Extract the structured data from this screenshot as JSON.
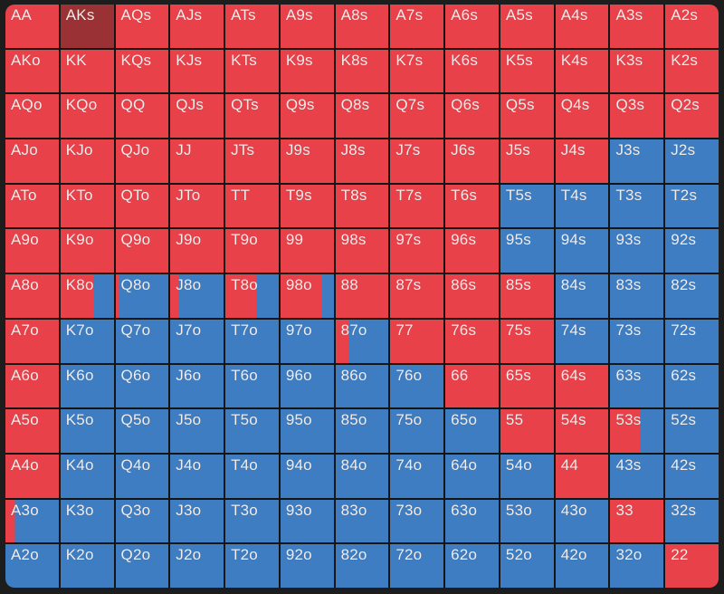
{
  "colors": {
    "raise": "#e8414a",
    "fold": "#3e7dc1",
    "selected": "#9a3134",
    "grid_line": "#151515",
    "page_background": "#1d1d1d",
    "label_text": "#f2eceb"
  },
  "range_grid": {
    "description": "13x13 poker preflop hand matrix; red fraction = raise frequency, remainder fold/call (blue)",
    "rows": [
      [
        [
          "AA",
          1
        ],
        [
          "AKs",
          1,
          "selected"
        ],
        [
          "AQs",
          1
        ],
        [
          "AJs",
          1
        ],
        [
          "ATs",
          1
        ],
        [
          "A9s",
          1
        ],
        [
          "A8s",
          1
        ],
        [
          "A7s",
          1
        ],
        [
          "A6s",
          1
        ],
        [
          "A5s",
          1
        ],
        [
          "A4s",
          1
        ],
        [
          "A3s",
          1
        ],
        [
          "A2s",
          1
        ]
      ],
      [
        [
          "AKo",
          1
        ],
        [
          "KK",
          1
        ],
        [
          "KQs",
          1
        ],
        [
          "KJs",
          1
        ],
        [
          "KTs",
          1
        ],
        [
          "K9s",
          1
        ],
        [
          "K8s",
          1
        ],
        [
          "K7s",
          1
        ],
        [
          "K6s",
          1
        ],
        [
          "K5s",
          1
        ],
        [
          "K4s",
          1
        ],
        [
          "K3s",
          1
        ],
        [
          "K2s",
          1
        ]
      ],
      [
        [
          "AQo",
          1
        ],
        [
          "KQo",
          1
        ],
        [
          "QQ",
          1
        ],
        [
          "QJs",
          1
        ],
        [
          "QTs",
          1
        ],
        [
          "Q9s",
          1
        ],
        [
          "Q8s",
          1
        ],
        [
          "Q7s",
          1
        ],
        [
          "Q6s",
          1
        ],
        [
          "Q5s",
          1
        ],
        [
          "Q4s",
          1
        ],
        [
          "Q3s",
          1
        ],
        [
          "Q2s",
          1
        ]
      ],
      [
        [
          "AJo",
          1
        ],
        [
          "KJo",
          1
        ],
        [
          "QJo",
          1
        ],
        [
          "JJ",
          1
        ],
        [
          "JTs",
          1
        ],
        [
          "J9s",
          1
        ],
        [
          "J8s",
          1
        ],
        [
          "J7s",
          1
        ],
        [
          "J6s",
          1
        ],
        [
          "J5s",
          1
        ],
        [
          "J4s",
          1
        ],
        [
          "J3s",
          0
        ],
        [
          "J2s",
          0
        ]
      ],
      [
        [
          "ATo",
          1
        ],
        [
          "KTo",
          1
        ],
        [
          "QTo",
          1
        ],
        [
          "JTo",
          1
        ],
        [
          "TT",
          1
        ],
        [
          "T9s",
          1
        ],
        [
          "T8s",
          1
        ],
        [
          "T7s",
          1
        ],
        [
          "T6s",
          1
        ],
        [
          "T5s",
          0
        ],
        [
          "T4s",
          0
        ],
        [
          "T3s",
          0
        ],
        [
          "T2s",
          0
        ]
      ],
      [
        [
          "A9o",
          1
        ],
        [
          "K9o",
          1
        ],
        [
          "Q9o",
          1
        ],
        [
          "J9o",
          1
        ],
        [
          "T9o",
          1
        ],
        [
          "99",
          1
        ],
        [
          "98s",
          1
        ],
        [
          "97s",
          1
        ],
        [
          "96s",
          1
        ],
        [
          "95s",
          0
        ],
        [
          "94s",
          0
        ],
        [
          "93s",
          0
        ],
        [
          "92s",
          0
        ]
      ],
      [
        [
          "A8o",
          1
        ],
        [
          "K8o",
          0.62
        ],
        [
          "Q8o",
          0.05
        ],
        [
          "J8o",
          0.15
        ],
        [
          "T8o",
          0.58
        ],
        [
          "98o",
          0.77
        ],
        [
          "88",
          1
        ],
        [
          "87s",
          1
        ],
        [
          "86s",
          1
        ],
        [
          "85s",
          1
        ],
        [
          "84s",
          0
        ],
        [
          "83s",
          0
        ],
        [
          "82s",
          0
        ]
      ],
      [
        [
          "A7o",
          1
        ],
        [
          "K7o",
          0
        ],
        [
          "Q7o",
          0
        ],
        [
          "J7o",
          0
        ],
        [
          "T7o",
          0
        ],
        [
          "97o",
          0
        ],
        [
          "87o",
          0.26
        ],
        [
          "77",
          1
        ],
        [
          "76s",
          1
        ],
        [
          "75s",
          1
        ],
        [
          "74s",
          0
        ],
        [
          "73s",
          0
        ],
        [
          "72s",
          0
        ]
      ],
      [
        [
          "A6o",
          1
        ],
        [
          "K6o",
          0
        ],
        [
          "Q6o",
          0
        ],
        [
          "J6o",
          0
        ],
        [
          "T6o",
          0
        ],
        [
          "96o",
          0
        ],
        [
          "86o",
          0
        ],
        [
          "76o",
          0
        ],
        [
          "66",
          1
        ],
        [
          "65s",
          1
        ],
        [
          "64s",
          1
        ],
        [
          "63s",
          0
        ],
        [
          "62s",
          0
        ]
      ],
      [
        [
          "A5o",
          1
        ],
        [
          "K5o",
          0
        ],
        [
          "Q5o",
          0
        ],
        [
          "J5o",
          0
        ],
        [
          "T5o",
          0
        ],
        [
          "95o",
          0
        ],
        [
          "85o",
          0
        ],
        [
          "75o",
          0
        ],
        [
          "65o",
          0
        ],
        [
          "55",
          1
        ],
        [
          "54s",
          1
        ],
        [
          "53s",
          0.56
        ],
        [
          "52s",
          0
        ]
      ],
      [
        [
          "A4o",
          1
        ],
        [
          "K4o",
          0
        ],
        [
          "Q4o",
          0
        ],
        [
          "J4o",
          0
        ],
        [
          "T4o",
          0
        ],
        [
          "94o",
          0
        ],
        [
          "84o",
          0
        ],
        [
          "74o",
          0
        ],
        [
          "64o",
          0
        ],
        [
          "54o",
          0
        ],
        [
          "44",
          1
        ],
        [
          "43s",
          0
        ],
        [
          "42s",
          0
        ]
      ],
      [
        [
          "A3o",
          0.18
        ],
        [
          "K3o",
          0
        ],
        [
          "Q3o",
          0
        ],
        [
          "J3o",
          0
        ],
        [
          "T3o",
          0
        ],
        [
          "93o",
          0
        ],
        [
          "83o",
          0
        ],
        [
          "73o",
          0
        ],
        [
          "63o",
          0
        ],
        [
          "53o",
          0
        ],
        [
          "43o",
          0
        ],
        [
          "33",
          1
        ],
        [
          "32s",
          0
        ]
      ],
      [
        [
          "A2o",
          0
        ],
        [
          "K2o",
          0
        ],
        [
          "Q2o",
          0
        ],
        [
          "J2o",
          0
        ],
        [
          "T2o",
          0
        ],
        [
          "92o",
          0
        ],
        [
          "82o",
          0
        ],
        [
          "72o",
          0
        ],
        [
          "62o",
          0
        ],
        [
          "52o",
          0
        ],
        [
          "42o",
          0
        ],
        [
          "32o",
          0
        ],
        [
          "22",
          1
        ]
      ]
    ]
  }
}
